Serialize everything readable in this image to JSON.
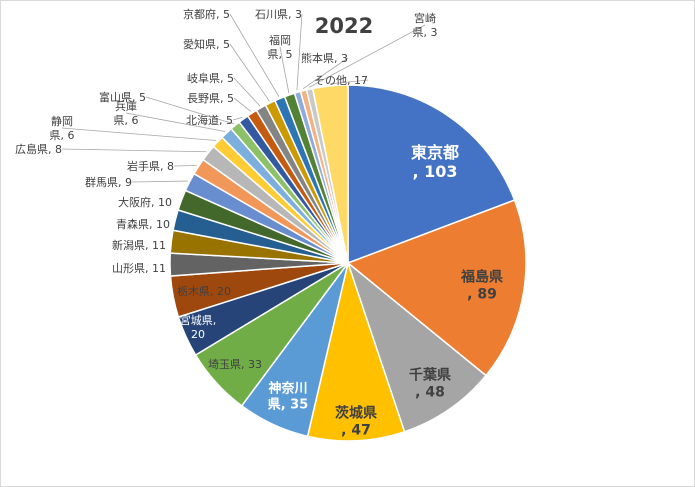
{
  "chart_data": {
    "type": "pie",
    "title": "2022",
    "slices": [
      {
        "label": "東京都",
        "value": 103,
        "color": "#4472C4"
      },
      {
        "label": "福島県",
        "value": 89,
        "color": "#ED7D31"
      },
      {
        "label": "千葉県",
        "value": 48,
        "color": "#A5A5A5"
      },
      {
        "label": "茨城県",
        "value": 47,
        "color": "#FFC000"
      },
      {
        "label": "神奈川県",
        "value": 35,
        "color": "#5B9BD5"
      },
      {
        "label": "埼玉県",
        "value": 33,
        "color": "#70AD47"
      },
      {
        "label": "宮城県",
        "value": 20,
        "color": "#264478"
      },
      {
        "label": "栃木県",
        "value": 20,
        "color": "#9E480E"
      },
      {
        "label": "山形県",
        "value": 11,
        "color": "#636363"
      },
      {
        "label": "新潟県",
        "value": 11,
        "color": "#997300"
      },
      {
        "label": "青森県",
        "value": 10,
        "color": "#255E91"
      },
      {
        "label": "大阪府",
        "value": 10,
        "color": "#43682B"
      },
      {
        "label": "群馬県",
        "value": 9,
        "color": "#698ED0"
      },
      {
        "label": "岩手県",
        "value": 8,
        "color": "#F1975A"
      },
      {
        "label": "広島県",
        "value": 8,
        "color": "#B7B7B7"
      },
      {
        "label": "静岡県",
        "value": 6,
        "color": "#FFCD33"
      },
      {
        "label": "兵庫県",
        "value": 6,
        "color": "#7CAFDD"
      },
      {
        "label": "富山県",
        "value": 5,
        "color": "#8CC168"
      },
      {
        "label": "北海道",
        "value": 5,
        "color": "#335AA1"
      },
      {
        "label": "長野県",
        "value": 5,
        "color": "#C55A11"
      },
      {
        "label": "岐阜県",
        "value": 5,
        "color": "#848484"
      },
      {
        "label": "愛知県",
        "value": 5,
        "color": "#CC9A00"
      },
      {
        "label": "京都府",
        "value": 5,
        "color": "#2E75B6"
      },
      {
        "label": "福岡県",
        "value": 5,
        "color": "#548235"
      },
      {
        "label": "石川県",
        "value": 3,
        "color": "#8FAADC"
      },
      {
        "label": "熊本県",
        "value": 3,
        "color": "#F4B183"
      },
      {
        "label": "宮崎県",
        "value": 3,
        "color": "#C9C9C9"
      },
      {
        "label": "その他",
        "value": 17,
        "color": "#FFD966"
      }
    ],
    "display_labels": [
      [
        "東京都",
        ", 103"
      ],
      [
        "福島県",
        ", 89"
      ],
      [
        "千葉県",
        ", 48"
      ],
      [
        "茨城県",
        ", 47"
      ],
      [
        "神奈川",
        "県, 35"
      ],
      [
        "埼玉県, 33"
      ],
      [
        "宮城県,",
        "20"
      ],
      [
        "栃木県, 20"
      ],
      [
        "山形県, 11"
      ],
      [
        "新潟県, 11"
      ],
      [
        "青森県, 10"
      ],
      [
        "大阪府, 10"
      ],
      [
        "群馬県, 9"
      ],
      [
        "岩手県, 8"
      ],
      [
        "広島県, 8"
      ],
      [
        "静岡",
        "県, 6"
      ],
      [
        "兵庫",
        "県, 6"
      ],
      [
        "富山県, 5"
      ],
      [
        "北海道, 5"
      ],
      [
        "長野県, 5"
      ],
      [
        "岐阜県, 5"
      ],
      [
        "愛知県, 5"
      ],
      [
        "京都府, 5"
      ],
      [
        "福岡",
        "県, 5"
      ],
      [
        "石川県, 3"
      ],
      [
        "熊本県, 3"
      ],
      [
        "宮崎",
        "県, 3"
      ],
      [
        "その他, 17"
      ]
    ],
    "legend": "none",
    "grid": false
  }
}
